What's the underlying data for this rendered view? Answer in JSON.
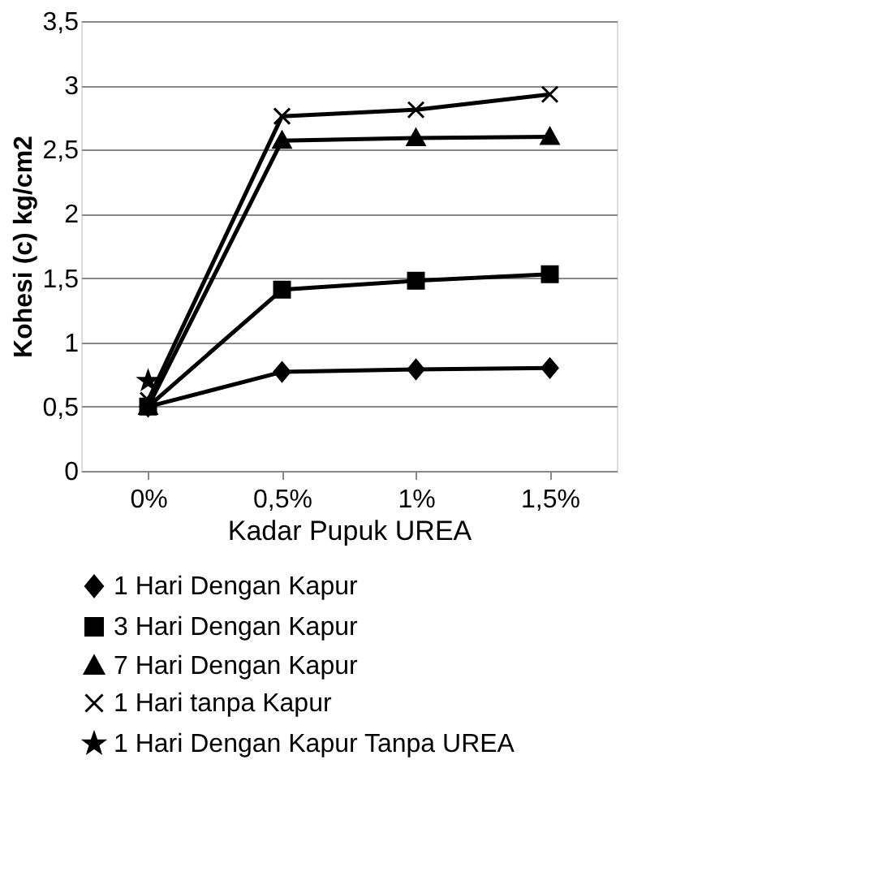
{
  "chart_data": {
    "type": "line",
    "xlabel": "Kadar Pupuk UREA",
    "ylabel": "Kohesi (c) kg/cm2",
    "categories": [
      "0%",
      "0,5%",
      "1%",
      "1,5%"
    ],
    "series": [
      {
        "name": "1 Hari Dengan Kapur",
        "color": "#000000",
        "marker": "diamond",
        "values": [
          0.5,
          0.77,
          0.79,
          0.8
        ]
      },
      {
        "name": "3 Hari Dengan Kapur",
        "color": "#000000",
        "marker": "square",
        "values": [
          0.5,
          1.41,
          1.48,
          1.53
        ]
      },
      {
        "name": "7 Hari Dengan Kapur",
        "color": "#000000",
        "marker": "triangle",
        "values": [
          0.5,
          2.57,
          2.59,
          2.6
        ]
      },
      {
        "name": "1 Hari tanpa Kapur",
        "color": "#000000",
        "marker": "cross",
        "values": [
          0.55,
          2.76,
          2.81,
          2.93
        ]
      },
      {
        "name": "1 Hari Dengan Kapur Tanpa UREA",
        "color": "#000000",
        "marker": "star",
        "values": [
          0.7,
          null,
          null,
          null
        ]
      }
    ],
    "ylim": [
      0,
      3.5
    ],
    "yticks": [
      0,
      {
        "value": 0.5,
        "label": "0,5"
      },
      1,
      {
        "value": 1.5,
        "label": "1,5"
      },
      2,
      {
        "value": 2.5,
        "label": "2,5"
      },
      3,
      {
        "value": 3.5,
        "label": "3,5"
      }
    ],
    "grid": "y",
    "legend": "bottom",
    "line_style": "solid"
  }
}
